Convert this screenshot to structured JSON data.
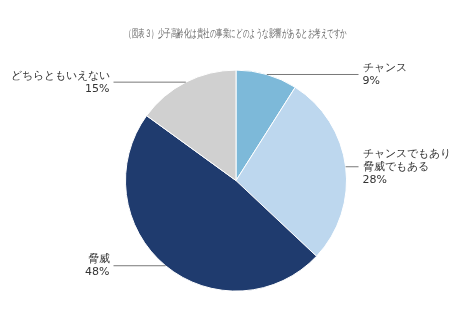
{
  "chart_data": {
    "type": "pie",
    "title": "（図表３）少子高齢化は貴社の事業にどのような影響があるとお考えですか",
    "categories": [
      "チャンス",
      "チャンスでもあり\n脅威でもある",
      "脅威",
      "どちらともいえない"
    ],
    "values": [
      9,
      28,
      48,
      15
    ],
    "value_labels": [
      "9%",
      "28%",
      "48%",
      "15%"
    ],
    "colors": [
      "#7DB9D9",
      "#BDD7EE",
      "#1F3B6E",
      "#D0D0D0"
    ],
    "data_labels": true
  }
}
